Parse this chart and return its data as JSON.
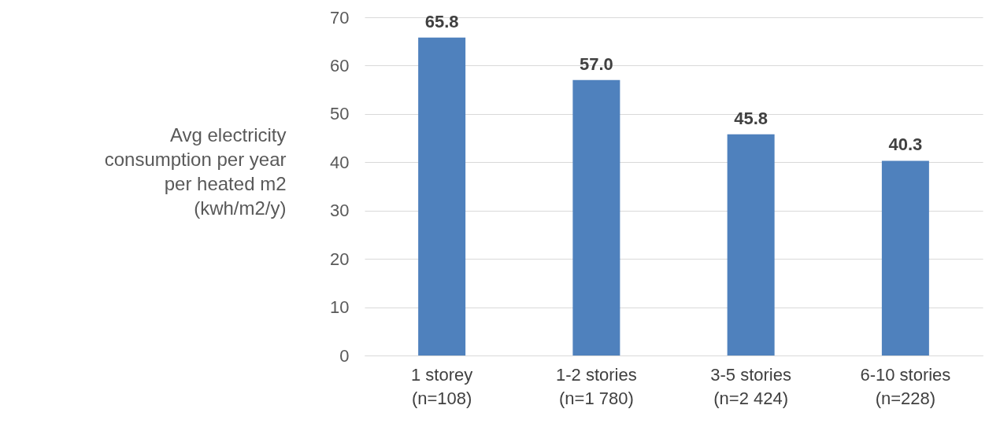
{
  "chart_data": {
    "type": "bar",
    "ylabel": "Avg electricity\nconsumption per year\nper heated m2\n(kwh/m2/y)",
    "categories": [
      "1 storey\n(n=108)",
      "1-2 stories\n(n=1 780)",
      "3-5 stories\n(n=2 424)",
      "6-10 stories\n(n=228)"
    ],
    "values": [
      65.8,
      57.0,
      45.8,
      40.3
    ],
    "value_labels": [
      "65.8",
      "57.0",
      "45.8",
      "40.3"
    ],
    "color": "#4f81bd",
    "ylim": [
      0,
      70
    ],
    "yticks": [
      0,
      10,
      20,
      30,
      40,
      50,
      60,
      70
    ],
    "grid": "y"
  }
}
